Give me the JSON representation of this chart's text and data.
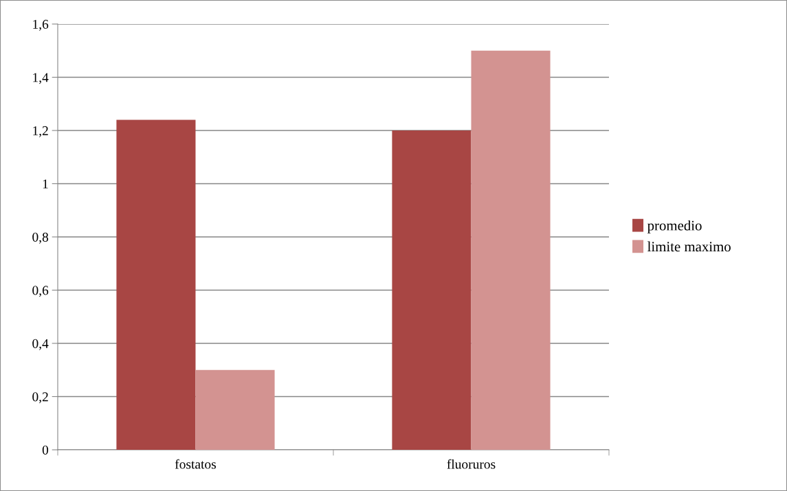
{
  "chart_data": {
    "type": "bar",
    "categories": [
      "fostatos",
      "fluoruros"
    ],
    "series": [
      {
        "name": "promedio",
        "color": "#a84644",
        "values": [
          1.24,
          1.2
        ]
      },
      {
        "name": "limite maximo",
        "color": "#d39391",
        "values": [
          0.3,
          1.5
        ]
      }
    ],
    "ylim": [
      0,
      1.6
    ],
    "yticks": [
      0,
      {
        "value": 0.2,
        "label": "0,2"
      },
      {
        "value": 0.4,
        "label": "0,4"
      },
      {
        "value": 0.6,
        "label": "0,6"
      },
      {
        "value": 0.8,
        "label": "0,8"
      },
      1,
      {
        "value": 1.2,
        "label": "1,2"
      },
      {
        "value": 1.4,
        "label": "1,4"
      },
      {
        "value": 1.6,
        "label": "1,6"
      }
    ],
    "grid": "y",
    "legend": "right"
  }
}
